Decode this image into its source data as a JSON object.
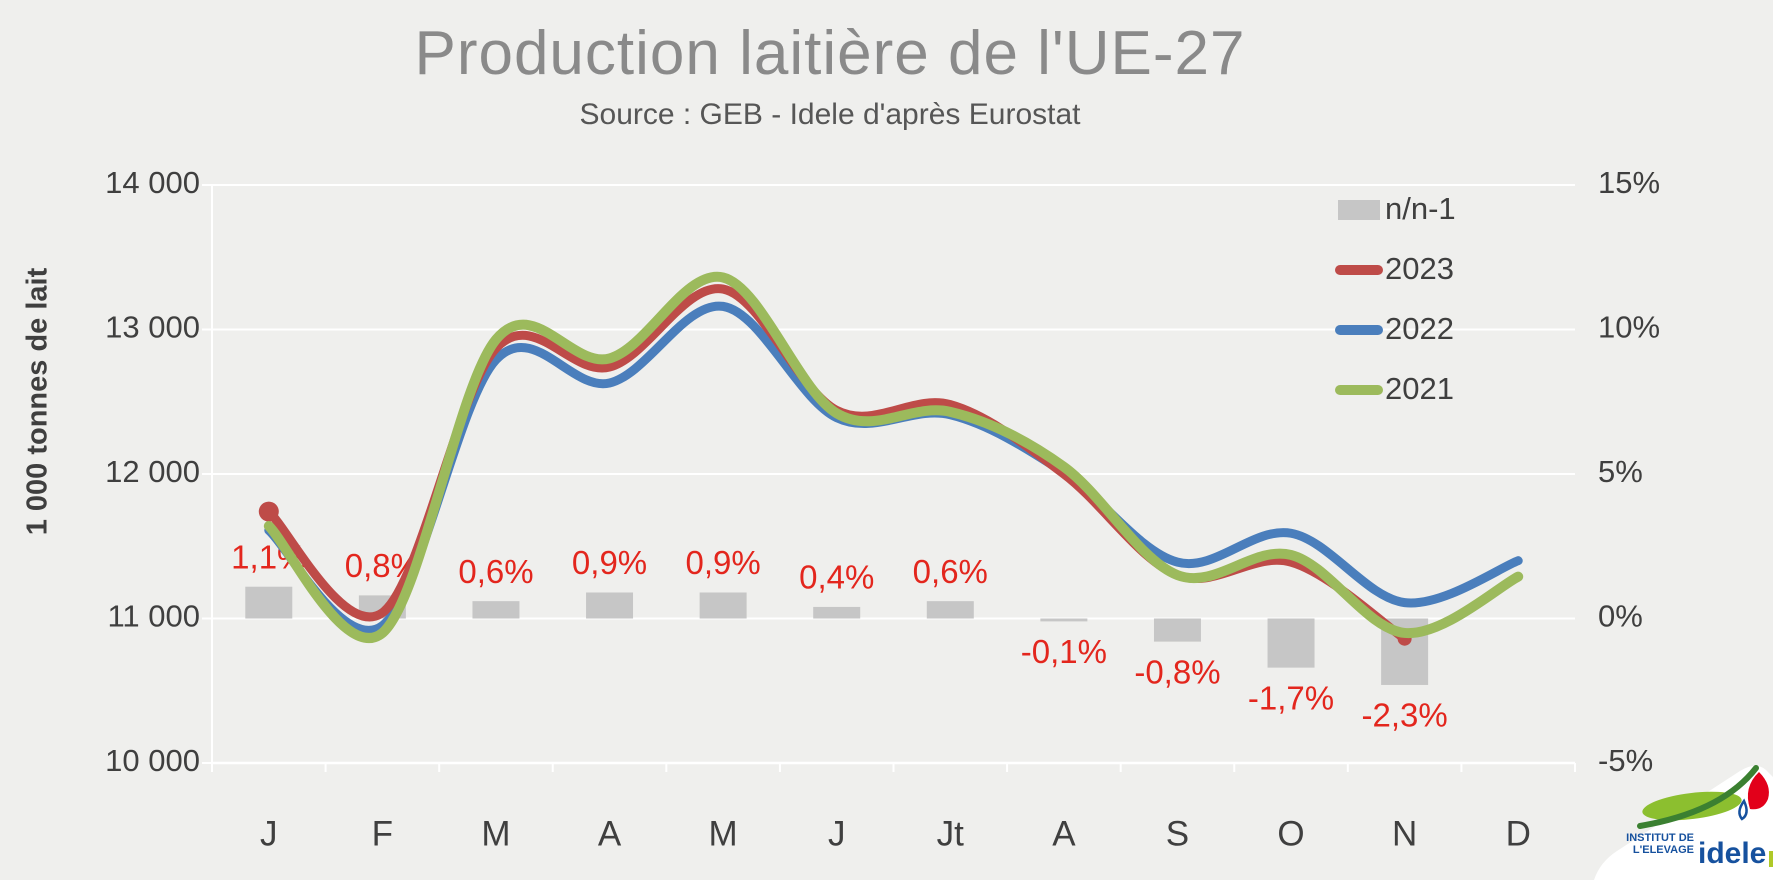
{
  "title": "Production laitière de l'UE-27",
  "subtitle": "Source : GEB - Idele d'après Eurostat",
  "y_axis": {
    "title": "1 000 tonnes de lait",
    "tick_labels": [
      "14 000",
      "13 000",
      "12 000",
      "11 000",
      "10 000"
    ],
    "tick_values": [
      14000,
      13000,
      12000,
      11000,
      10000
    ]
  },
  "y2_axis": {
    "tick_labels": [
      "15%",
      "10%",
      "5%",
      "0%",
      "-5%"
    ],
    "tick_values": [
      15,
      10,
      5,
      0,
      -5
    ]
  },
  "legend": {
    "items": [
      {
        "label": "n/n-1",
        "type": "bar",
        "color": "#C6C6C6"
      },
      {
        "label": "2023",
        "type": "line",
        "color": "#BE4B48"
      },
      {
        "label": "2022",
        "type": "line",
        "color": "#4A7EBC"
      },
      {
        "label": "2021",
        "type": "line",
        "color": "#9CBA5C"
      }
    ]
  },
  "chart_data": {
    "type": "line+bar combo",
    "categories": [
      "J",
      "F",
      "M",
      "A",
      "M",
      "J",
      "Jt",
      "A",
      "S",
      "O",
      "N",
      "D"
    ],
    "left_axis": {
      "label": "1 000 tonnes de lait",
      "range": [
        10000,
        14000
      ],
      "unit": "1000 t"
    },
    "right_axis": {
      "range": [
        -5,
        15
      ],
      "unit": "%"
    },
    "grid": true,
    "legend_position": "top-right-inside",
    "series": [
      {
        "name": "n/n-1",
        "type": "bar",
        "axis": "right",
        "color": "#C6C6C6",
        "values": [
          1.1,
          0.8,
          0.6,
          0.9,
          0.9,
          0.4,
          0.6,
          -0.1,
          -0.8,
          -1.7,
          -2.3,
          null
        ],
        "labels": [
          "1,1%",
          "0,8%",
          "0,6%",
          "0,9%",
          "0,9%",
          "0,4%",
          "0,6%",
          "-0,1%",
          "-0,8%",
          "-1,7%",
          "-2,3%",
          null
        ],
        "label_color": "#E3261D"
      },
      {
        "name": "2023",
        "type": "line",
        "axis": "left",
        "color": "#BE4B48",
        "smooth": true,
        "markers": "first-last",
        "values": [
          11740,
          11040,
          12870,
          12740,
          13280,
          12440,
          12480,
          12000,
          11300,
          11390,
          10860,
          null
        ]
      },
      {
        "name": "2022",
        "type": "line",
        "axis": "left",
        "color": "#4A7EBC",
        "smooth": true,
        "values": [
          11610,
          10950,
          12790,
          12630,
          13160,
          12390,
          12410,
          12010,
          11390,
          11590,
          11110,
          11400
        ]
      },
      {
        "name": "2021",
        "type": "line",
        "axis": "left",
        "color": "#9CBA5C",
        "smooth": true,
        "values": [
          11640,
          10900,
          12930,
          12800,
          13360,
          12420,
          12430,
          12050,
          11300,
          11440,
          10900,
          11290
        ]
      }
    ]
  },
  "logo": {
    "line1": "INSTITUT DE",
    "line2": "L'ELEVAGE",
    "brand": "idele",
    "brand_color": "#16519E",
    "swoosh_color": "#8CBF2F",
    "arc_color": "#3B8031",
    "red_color": "#E2001A"
  },
  "colors": {
    "background": "#EFEFED",
    "gridline": "#FFFFFF",
    "axis_text": "#3F3F3F",
    "title_text": "#8A8A8A",
    "subtitle_text": "#565656",
    "data_label": "#E3261D"
  }
}
